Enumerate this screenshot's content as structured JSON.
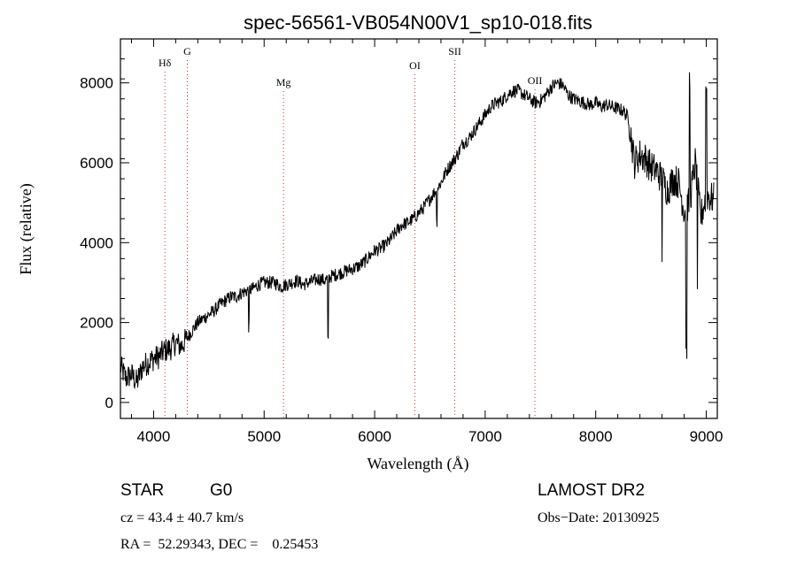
{
  "chart_data": {
    "type": "line",
    "title": "spec-56561-VB054N00V1_sp10-018.fits",
    "xlabel": "Wavelength (Å)",
    "ylabel": "Flux (relative)",
    "xlim": [
      3700,
      9100
    ],
    "ylim": [
      -400,
      9100
    ],
    "xticks": [
      4000,
      5000,
      6000,
      7000,
      8000,
      9000
    ],
    "yticks": [
      0,
      2000,
      4000,
      6000,
      8000
    ],
    "grid": false,
    "series": [
      {
        "values_note_omitted": true,
        "x": [
          3700,
          3750,
          3800,
          3850,
          3900,
          3950,
          4000,
          4050,
          4100,
          4150,
          4200,
          4250,
          4300,
          4350,
          4400,
          4450,
          4500,
          4550,
          4600,
          4650,
          4700,
          4750,
          4800,
          4850,
          4900,
          4950,
          5000,
          5050,
          5100,
          5150,
          5200,
          5250,
          5300,
          5350,
          5400,
          5450,
          5500,
          5550,
          5600,
          5650,
          5700,
          5750,
          5800,
          5850,
          5900,
          5950,
          6000,
          6050,
          6100,
          6150,
          6200,
          6250,
          6300,
          6350,
          6400,
          6450,
          6500,
          6550,
          6600,
          6650,
          6700,
          6750,
          6800,
          6850,
          6900,
          6950,
          7000,
          7050,
          7100,
          7150,
          7200,
          7250,
          7300,
          7350,
          7400,
          7450,
          7500,
          7550,
          7600,
          7650,
          7700,
          7750,
          7800,
          7850,
          7900,
          7950,
          8000,
          8050,
          8100,
          8150,
          8200,
          8250,
          8300,
          8350,
          8400,
          8450,
          8500,
          8550,
          8600,
          8650,
          8700,
          8750,
          8800,
          8850,
          8900,
          8950,
          9000,
          9050
        ],
        "y": [
          900,
          600,
          700,
          500,
          900,
          1000,
          1100,
          1150,
          1300,
          1350,
          1500,
          1400,
          1600,
          1800,
          2000,
          2100,
          2200,
          2300,
          2450,
          2550,
          2650,
          2650,
          2750,
          2800,
          2850,
          2950,
          3000,
          3000,
          3000,
          2900,
          2950,
          3000,
          3050,
          2950,
          3000,
          3050,
          3100,
          3050,
          3150,
          3200,
          3250,
          3300,
          3350,
          3400,
          3500,
          3650,
          3800,
          3850,
          3950,
          4100,
          4300,
          4450,
          4500,
          4600,
          4750,
          4900,
          5100,
          5300,
          5500,
          5800,
          6000,
          6200,
          6500,
          6600,
          6800,
          7000,
          7200,
          7400,
          7500,
          7550,
          7700,
          7800,
          7800,
          7700,
          7600,
          7500,
          7550,
          7700,
          7900,
          8000,
          7950,
          7700,
          7600,
          7550,
          7500,
          7450,
          7500,
          7400,
          7450,
          7400,
          7350,
          7300,
          7100,
          6000,
          6200,
          6100,
          5900,
          5800,
          5600,
          5300,
          5600,
          5500,
          4800,
          5000,
          6000,
          4600,
          5200,
          5100
        ]
      }
    ],
    "annotations": [
      {
        "label": "Hδ",
        "x": 4102
      },
      {
        "label": "G",
        "x": 4305
      },
      {
        "label": "Mg",
        "x": 5175
      },
      {
        "label": "OI",
        "x": 6364
      },
      {
        "label": "SII",
        "x": 6725
      },
      {
        "label": "OII",
        "x": 7450
      }
    ]
  },
  "info": {
    "class_label": "STAR",
    "subclass_label": "G0",
    "survey": "LAMOST DR2",
    "cz": "cz = 43.4 ± 40.7 km/s",
    "obs_date": "Obs−Date: 20130925",
    "radec": "RA =  52.29343, DEC =    0.25453"
  }
}
